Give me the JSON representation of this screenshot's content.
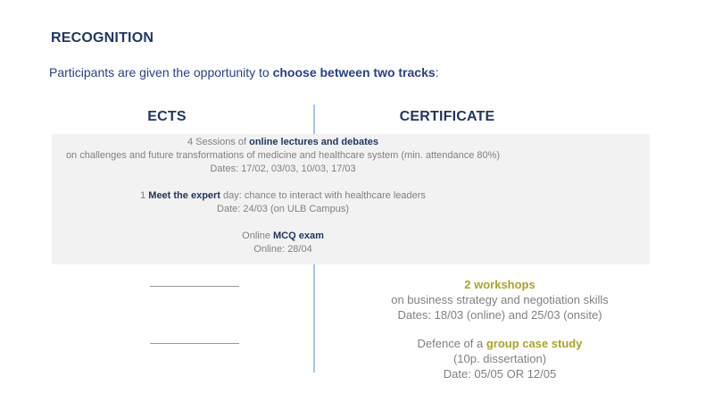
{
  "colors": {
    "heading_navy": "#1f3864",
    "intro_blue": "#26418c",
    "body_gray": "#808080",
    "accent_olive": "#aba32a",
    "box_background": "#f2f2f2",
    "divider_blue": "#a7c4f2",
    "blank_line_gray": "#999999"
  },
  "title": "RECOGNITION",
  "intro": {
    "prefix": "Participants are given the opportunity to ",
    "bold": "choose between two tracks",
    "suffix": ":"
  },
  "tracks": {
    "ects": "ECTS",
    "certificate": "CERTIFICATE"
  },
  "shared": {
    "lectures": {
      "pre": "4 Sessions of ",
      "bold": "online lectures and debates",
      "desc": "on challenges and future transformations of medicine and healthcare system (min. attendance 80%)",
      "dates": "Dates: 17/02, 03/03, 10/03, 17/03"
    },
    "expert": {
      "pre": "1 ",
      "bold": "Meet the expert",
      "post": " day: chance to interact with healthcare leaders",
      "dates": "Date: 24/03 (on ULB Campus)"
    },
    "mcq": {
      "pre": "Online ",
      "bold": "MCQ exam",
      "dates": "Online: 28/04"
    }
  },
  "certificate_only": {
    "workshops": {
      "bold": "2 workshops",
      "desc": "on business strategy and negotiation skills",
      "dates": "Dates: 18/03 (online) and 25/03 (onsite)"
    },
    "case_study": {
      "pre": "Defence of a ",
      "bold": "group case study",
      "line2": "(10p. dissertation)",
      "dates": "Date: 05/05 OR 12/05"
    }
  }
}
